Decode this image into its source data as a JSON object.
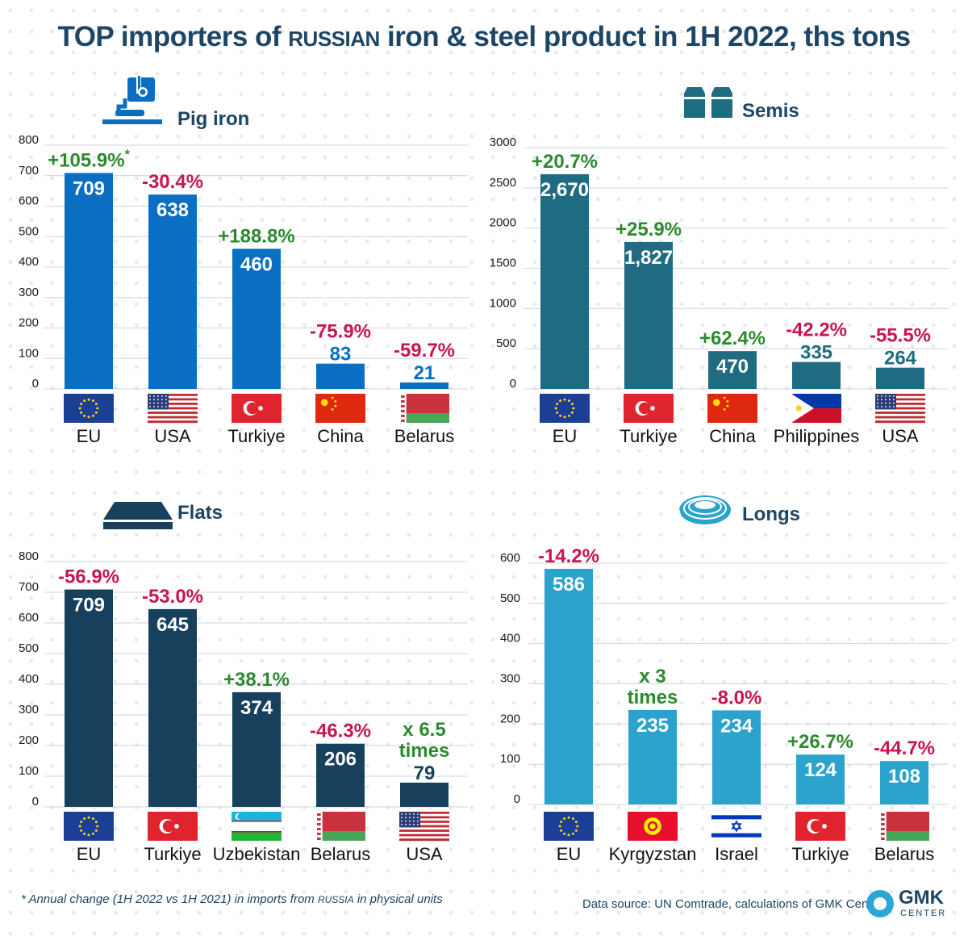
{
  "title": {
    "main": "TOP importers of ",
    "ru": "RUSSIAN",
    "rest": " iron & steel product in 1H 2022, ths tons"
  },
  "colors": {
    "up": "#2b8a2f",
    "down": "#c8154f"
  },
  "footnote": {
    "pre": "* Annual change (1H 2022 vs 1H 2021) in imports from ",
    "ru": "RUSSIA",
    "post": " in physical units"
  },
  "source": "Data source: UN Comtrade, calculations of GMK Center",
  "logo": {
    "name": "GMK",
    "sub": "CENTER"
  },
  "chart_data": [
    {
      "type": "bar",
      "title": "Pig iron",
      "icon": "ladle-icon",
      "color": "#0a6fc2",
      "ylim": [
        0,
        800
      ],
      "yticks": [
        0,
        100,
        200,
        300,
        400,
        500,
        600,
        700,
        800
      ],
      "categories": [
        "EU",
        "USA",
        "Turkiye",
        "China",
        "Belarus"
      ],
      "flags": [
        "eu",
        "usa",
        "turkiye",
        "china",
        "belarus"
      ],
      "values": [
        709,
        638,
        460,
        83,
        21
      ],
      "value_labels": [
        "709",
        "638",
        "460",
        "83",
        "21"
      ],
      "changes": [
        [
          "+105.9%",
          "*"
        ],
        [
          "-30.4%"
        ],
        [
          "+188.8%"
        ],
        [
          "-75.9%"
        ],
        [
          "-59.7%"
        ]
      ],
      "change_dir": [
        "up",
        "down",
        "up",
        "down",
        "down"
      ]
    },
    {
      "type": "bar",
      "title": "Semis",
      "icon": "billets-icon",
      "color": "#1f6b81",
      "ylim": [
        0,
        3000
      ],
      "yticks": [
        0,
        500,
        1000,
        1500,
        2000,
        2500,
        3000
      ],
      "categories": [
        "EU",
        "Turkiye",
        "China",
        "Philippines",
        "USA"
      ],
      "flags": [
        "eu",
        "turkiye",
        "china",
        "philippines",
        "usa"
      ],
      "values": [
        2670,
        1827,
        470,
        335,
        264
      ],
      "value_labels": [
        "2,670",
        "1,827",
        "470",
        "335",
        "264"
      ],
      "changes": [
        [
          "+20.7%"
        ],
        [
          "+25.9%"
        ],
        [
          "+62.4%"
        ],
        [
          "-42.2%"
        ],
        [
          "-55.5%"
        ]
      ],
      "change_dir": [
        "up",
        "up",
        "up",
        "down",
        "down"
      ]
    },
    {
      "type": "bar",
      "title": "Flats",
      "icon": "slab-icon",
      "color": "#17405d",
      "ylim": [
        0,
        800
      ],
      "yticks": [
        0,
        100,
        200,
        300,
        400,
        500,
        600,
        700,
        800
      ],
      "categories": [
        "EU",
        "Turkiye",
        "Uzbekistan",
        "Belarus",
        "USA"
      ],
      "flags": [
        "eu",
        "turkiye",
        "uzbekistan",
        "belarus",
        "usa"
      ],
      "values": [
        709,
        645,
        374,
        206,
        79
      ],
      "value_labels": [
        "709",
        "645",
        "374",
        "206",
        "79"
      ],
      "changes": [
        [
          "-56.9%"
        ],
        [
          "-53.0%"
        ],
        [
          "+38.1%"
        ],
        [
          "-46.3%"
        ],
        [
          "x 6.5",
          "times"
        ]
      ],
      "change_dir": [
        "down",
        "down",
        "up",
        "down",
        "up"
      ]
    },
    {
      "type": "bar",
      "title": "Longs",
      "icon": "wire-coil-icon",
      "color": "#2ba3cc",
      "ylim": [
        0,
        600
      ],
      "yticks": [
        0,
        100,
        200,
        300,
        400,
        500,
        600
      ],
      "categories": [
        "EU",
        "Kyrgyzstan",
        "Israel",
        "Turkiye",
        "Belarus"
      ],
      "flags": [
        "eu",
        "kyrgyzstan",
        "israel",
        "turkiye",
        "belarus"
      ],
      "values": [
        586,
        235,
        234,
        124,
        108
      ],
      "value_labels": [
        "586",
        "235",
        "234",
        "124",
        "108"
      ],
      "changes": [
        [
          "-14.2%"
        ],
        [
          "x 3",
          "times"
        ],
        [
          "-8.0%"
        ],
        [
          "+26.7%"
        ],
        [
          "-44.7%"
        ]
      ],
      "change_dir": [
        "down",
        "up",
        "down",
        "up",
        "down"
      ]
    }
  ]
}
